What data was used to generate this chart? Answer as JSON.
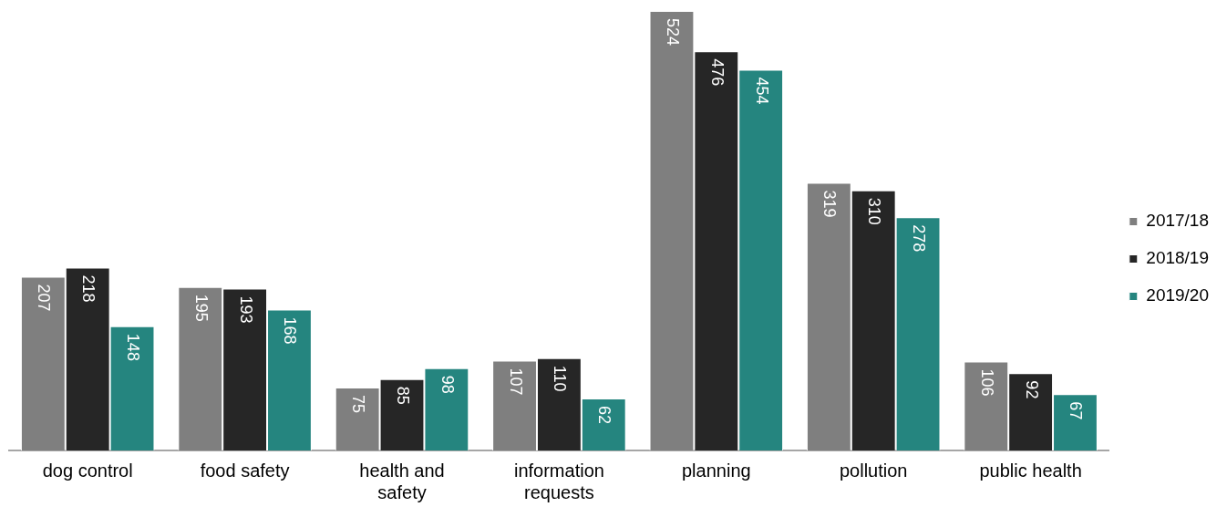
{
  "chart_data": {
    "type": "bar",
    "categories": [
      "dog control",
      "food safety",
      "health and safety",
      "information requests",
      "planning",
      "pollution",
      "public health"
    ],
    "series": [
      {
        "name": "2017/18",
        "color": "#7f7f7f",
        "values": [
          207,
          195,
          75,
          107,
          524,
          319,
          106
        ]
      },
      {
        "name": "2018/19",
        "color": "#262626",
        "values": [
          218,
          193,
          85,
          110,
          476,
          310,
          92
        ]
      },
      {
        "name": "2019/20",
        "color": "#25857f",
        "values": [
          148,
          168,
          98,
          62,
          454,
          278,
          67
        ]
      }
    ],
    "data_labels": true,
    "legend": "right",
    "grid": false
  }
}
